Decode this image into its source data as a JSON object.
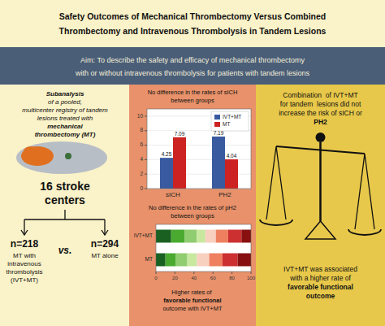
{
  "chart_data": [
    {
      "type": "bar",
      "title": "Safety Outcomes of Mechanical Thrombectomy Versus Combined",
      "subtitle": "Thrombectomy and Intravenous Thrombolysis in Tandem Lesions",
      "categories": [
        "sICH",
        "PH2"
      ],
      "series": [
        {
          "name": "IVT+MT",
          "color": "#3a5aa0",
          "values": [
            4.25,
            7.19
          ]
        },
        {
          "name": "MT",
          "color": "#cc2222",
          "values": [
            7.09,
            4.04
          ]
        }
      ],
      "ylim": [
        0,
        11
      ],
      "yticks": [
        0,
        2,
        4,
        6,
        8,
        10
      ],
      "grid": true,
      "legend": "top-right",
      "data_labels": true,
      "annotations": [
        [
          "Aim: To describe the safety and efficacy of mechanical thrombectomy",
          "with or without intravenous thrombolysis for patients with tandem lesions"
        ],
        [
          "Subanalysis",
          "of a pooled,",
          "multicenter registry of tandem",
          "lesions treated with",
          "mechanical",
          "thrombectomy (MT)"
        ],
        [
          "16 stroke",
          "centers"
        ],
        [
          "n=218",
          "MT with",
          "intravenous",
          "thrombolysis",
          "(IVT+MT)"
        ],
        [
          "vs."
        ],
        [
          "n=294",
          "MT alone"
        ],
        [
          "No difference in the rates of sICH",
          "between groups"
        ],
        [
          "No difference in the rates of pH2",
          "between groups"
        ],
        [
          "Higher rates of ",
          "favorable functional",
          "outcome with IVT+MT"
        ],
        [
          "Combination  of IVT+MT",
          "for tandem  lesions did not",
          "increase the risk of sICH or",
          "PH2"
        ],
        [
          "IVT+MT was associated",
          "with a higher rate of",
          "favorable functional",
          "outcome"
        ]
      ]
    },
    {
      "type": "bar",
      "orientation": "horizontal",
      "stacked": true,
      "grid": false,
      "categories": [
        "IVT+MT",
        "MT"
      ],
      "series": [
        {
          "color": "#1a6020",
          "values": [
            16,
            10
          ]
        },
        {
          "color": "#4aaa30",
          "values": [
            14,
            11
          ]
        },
        {
          "color": "#90cc70",
          "values": [
            13,
            12
          ]
        },
        {
          "color": "#c8e8a0",
          "values": [
            9,
            10
          ]
        },
        {
          "color": "#f8d0c0",
          "values": [
            11,
            13
          ]
        },
        {
          "color": "#ee8060",
          "values": [
            13,
            14
          ]
        },
        {
          "color": "#cc3030",
          "values": [
            14,
            16
          ]
        },
        {
          "color": "#881010",
          "values": [
            10,
            14
          ]
        }
      ],
      "xlim": [
        0,
        100
      ],
      "xticks": [
        0,
        20,
        40,
        60,
        80,
        100
      ]
    }
  ]
}
